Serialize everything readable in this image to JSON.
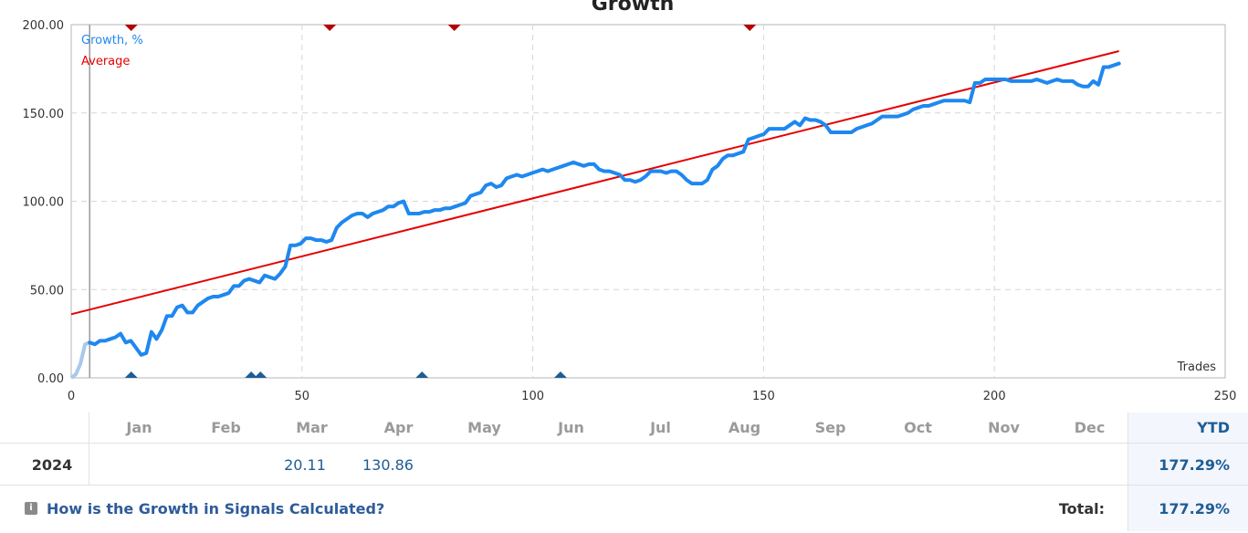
{
  "chart_data": {
    "type": "line",
    "title": "Growth",
    "xlabel": "Trades",
    "ylabel": "",
    "xlim": [
      0,
      250
    ],
    "ylim": [
      0,
      200
    ],
    "x_ticks": [
      "0",
      "50",
      "100",
      "150",
      "200",
      "250"
    ],
    "y_ticks": [
      "0.00",
      "50.00",
      "100.00",
      "150.00",
      "200.00"
    ],
    "grid": true,
    "legend_position": "top-left",
    "series": [
      {
        "name": "Growth, %",
        "color": "#1e88f0",
        "points": [
          [
            0,
            0
          ],
          [
            1,
            2
          ],
          [
            2,
            8
          ],
          [
            3,
            19
          ],
          [
            4,
            20
          ],
          [
            5,
            19
          ],
          [
            6,
            21
          ],
          [
            7,
            21
          ],
          [
            8,
            22
          ],
          [
            9,
            23
          ],
          [
            10,
            25
          ],
          [
            11,
            20
          ],
          [
            12,
            21
          ],
          [
            13,
            17
          ],
          [
            14,
            13
          ],
          [
            15,
            14
          ],
          [
            16,
            26
          ],
          [
            17,
            22
          ],
          [
            18,
            27
          ],
          [
            19,
            35
          ],
          [
            20,
            35
          ],
          [
            21,
            40
          ],
          [
            22,
            41
          ],
          [
            23,
            37
          ],
          [
            24,
            37
          ],
          [
            25,
            41
          ],
          [
            26,
            43
          ],
          [
            27,
            45
          ],
          [
            28,
            46
          ],
          [
            29,
            46
          ],
          [
            30,
            47
          ],
          [
            31,
            48
          ],
          [
            32,
            52
          ],
          [
            33,
            52
          ],
          [
            34,
            55
          ],
          [
            35,
            56
          ],
          [
            36,
            55
          ],
          [
            37,
            54
          ],
          [
            38,
            58
          ],
          [
            39,
            57
          ],
          [
            40,
            56
          ],
          [
            41,
            59
          ],
          [
            42,
            63
          ],
          [
            43,
            75
          ],
          [
            44,
            75
          ],
          [
            45,
            76
          ],
          [
            46,
            79
          ],
          [
            47,
            79
          ],
          [
            48,
            78
          ],
          [
            49,
            78
          ],
          [
            50,
            77
          ],
          [
            51,
            78
          ],
          [
            52,
            85
          ],
          [
            53,
            88
          ],
          [
            54,
            90
          ],
          [
            55,
            92
          ],
          [
            56,
            93
          ],
          [
            57,
            93
          ],
          [
            58,
            91
          ],
          [
            59,
            93
          ],
          [
            60,
            94
          ],
          [
            61,
            95
          ],
          [
            62,
            97
          ],
          [
            63,
            97
          ],
          [
            64,
            99
          ],
          [
            65,
            100
          ],
          [
            66,
            93
          ],
          [
            67,
            93
          ],
          [
            68,
            93
          ],
          [
            69,
            94
          ],
          [
            70,
            94
          ],
          [
            71,
            95
          ],
          [
            72,
            95
          ],
          [
            73,
            96
          ],
          [
            74,
            96
          ],
          [
            75,
            97
          ],
          [
            76,
            98
          ],
          [
            77,
            99
          ],
          [
            78,
            103
          ],
          [
            79,
            104
          ],
          [
            80,
            105
          ],
          [
            81,
            109
          ],
          [
            82,
            110
          ],
          [
            83,
            108
          ],
          [
            84,
            109
          ],
          [
            85,
            113
          ],
          [
            86,
            114
          ],
          [
            87,
            115
          ],
          [
            88,
            114
          ],
          [
            89,
            115
          ],
          [
            90,
            116
          ],
          [
            91,
            117
          ],
          [
            92,
            118
          ],
          [
            93,
            117
          ],
          [
            94,
            118
          ],
          [
            95,
            119
          ],
          [
            96,
            120
          ],
          [
            97,
            121
          ],
          [
            98,
            122
          ],
          [
            99,
            121
          ],
          [
            100,
            120
          ],
          [
            101,
            121
          ],
          [
            102,
            121
          ],
          [
            103,
            118
          ],
          [
            104,
            117
          ],
          [
            105,
            117
          ],
          [
            106,
            116
          ],
          [
            107,
            115
          ],
          [
            108,
            112
          ],
          [
            109,
            112
          ],
          [
            110,
            111
          ],
          [
            111,
            112
          ],
          [
            112,
            114
          ],
          [
            113,
            117
          ],
          [
            114,
            117
          ],
          [
            115,
            117
          ],
          [
            116,
            116
          ],
          [
            117,
            117
          ],
          [
            118,
            117
          ],
          [
            119,
            115
          ],
          [
            120,
            112
          ],
          [
            121,
            110
          ],
          [
            122,
            110
          ],
          [
            123,
            110
          ],
          [
            124,
            112
          ],
          [
            125,
            118
          ],
          [
            126,
            120
          ],
          [
            127,
            124
          ],
          [
            128,
            126
          ],
          [
            129,
            126
          ],
          [
            130,
            127
          ],
          [
            131,
            128
          ],
          [
            132,
            135
          ],
          [
            133,
            136
          ],
          [
            134,
            137
          ],
          [
            135,
            138
          ],
          [
            136,
            141
          ],
          [
            137,
            141
          ],
          [
            138,
            141
          ],
          [
            139,
            141
          ],
          [
            140,
            143
          ],
          [
            141,
            145
          ],
          [
            142,
            143
          ],
          [
            143,
            147
          ],
          [
            144,
            146
          ],
          [
            145,
            146
          ],
          [
            146,
            145
          ],
          [
            147,
            143
          ],
          [
            148,
            139
          ],
          [
            149,
            139
          ],
          [
            150,
            139
          ],
          [
            151,
            139
          ],
          [
            152,
            139
          ],
          [
            153,
            141
          ],
          [
            154,
            142
          ],
          [
            155,
            143
          ],
          [
            156,
            144
          ],
          [
            157,
            146
          ],
          [
            158,
            148
          ],
          [
            159,
            148
          ],
          [
            160,
            148
          ],
          [
            161,
            148
          ],
          [
            162,
            149
          ],
          [
            163,
            150
          ],
          [
            164,
            152
          ],
          [
            165,
            153
          ],
          [
            166,
            154
          ],
          [
            167,
            154
          ],
          [
            168,
            155
          ],
          [
            169,
            156
          ],
          [
            170,
            157
          ],
          [
            171,
            157
          ],
          [
            172,
            157
          ],
          [
            173,
            157
          ],
          [
            174,
            157
          ],
          [
            175,
            156
          ],
          [
            176,
            167
          ],
          [
            177,
            167
          ],
          [
            178,
            169
          ],
          [
            179,
            169
          ],
          [
            180,
            169
          ],
          [
            181,
            169
          ],
          [
            182,
            169
          ],
          [
            183,
            168
          ],
          [
            184,
            168
          ],
          [
            185,
            168
          ],
          [
            186,
            168
          ],
          [
            187,
            168
          ],
          [
            188,
            169
          ],
          [
            189,
            168
          ],
          [
            190,
            167
          ],
          [
            191,
            168
          ],
          [
            192,
            169
          ],
          [
            193,
            168
          ],
          [
            194,
            168
          ],
          [
            195,
            168
          ],
          [
            196,
            166
          ],
          [
            197,
            165
          ],
          [
            198,
            165
          ],
          [
            199,
            168
          ],
          [
            200,
            166
          ],
          [
            201,
            176
          ],
          [
            202,
            176
          ],
          [
            203,
            177
          ],
          [
            204,
            178
          ]
        ]
      },
      {
        "name": "Average",
        "color": "#e60000",
        "points": [
          [
            0,
            36
          ],
          [
            227,
            185
          ]
        ]
      }
    ],
    "markers_top_x": [
      13,
      56,
      83,
      147
    ],
    "markers_bottom_x": [
      13,
      39,
      41,
      76,
      106
    ]
  },
  "table": {
    "months": [
      "Jan",
      "Feb",
      "Mar",
      "Apr",
      "May",
      "Jun",
      "Jul",
      "Aug",
      "Sep",
      "Oct",
      "Nov",
      "Dec"
    ],
    "ytd_header": "YTD",
    "year": "2024",
    "mar_value": "20.11",
    "apr_value": "130.86",
    "ytd_value": "177.29%",
    "help_link": "How is the Growth in Signals Calculated?",
    "total_label": "Total:",
    "total_value": "177.29%"
  }
}
